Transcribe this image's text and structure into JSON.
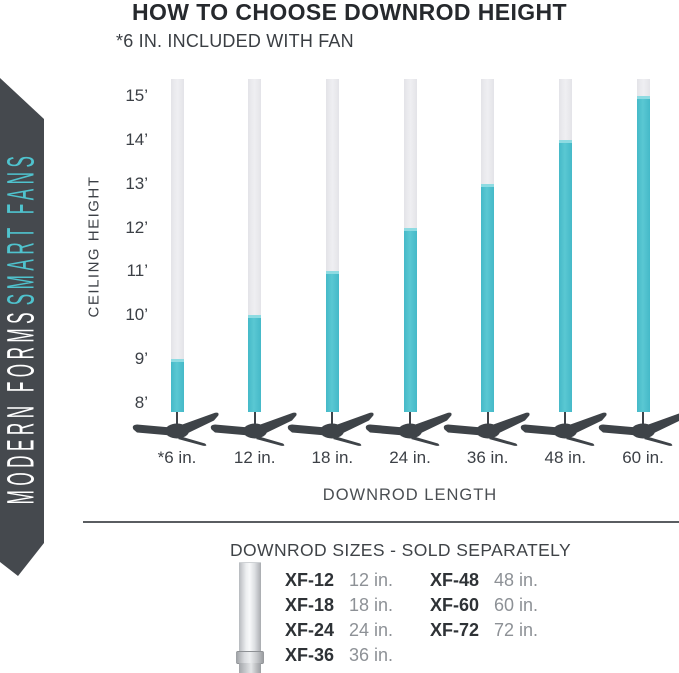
{
  "header": {
    "title": "HOW TO CHOOSE DOWNROD HEIGHT",
    "subtitle": "*6 IN. INCLUDED WITH FAN"
  },
  "ribbon": {
    "brand": "MODERN FORMS",
    "sub_brand": "SMART FANS"
  },
  "chart_data": {
    "type": "bar",
    "title": "HOW TO CHOOSE DOWNROD HEIGHT",
    "note": "*6 IN. INCLUDED WITH FAN",
    "categories": [
      "*6 in.",
      "12 in.",
      "18 in.",
      "24 in.",
      "36 in.",
      "48 in.",
      "60 in."
    ],
    "series": [
      {
        "name": "Ceiling height reached (ft)",
        "values": [
          9,
          10,
          11,
          12,
          13,
          14,
          15
        ]
      }
    ],
    "xlabel": "DOWNROD LENGTH",
    "ylabel": "CEILING HEIGHT",
    "yticks": [
      {
        "label": "15’",
        "value": 15
      },
      {
        "label": "14’",
        "value": 14
      },
      {
        "label": "13’",
        "value": 13
      },
      {
        "label": "12’",
        "value": 12
      },
      {
        "label": "11’",
        "value": 11
      },
      {
        "label": "10’",
        "value": 10
      },
      {
        "label": "9’",
        "value": 9
      },
      {
        "label": "8’",
        "value": 8
      }
    ],
    "ylim": [
      8,
      15
    ],
    "grid": false,
    "legend": false,
    "colors": {
      "filled": "#4cc0cd",
      "empty": "#e8e8ec",
      "fan": "#3e4348"
    }
  },
  "downrods": {
    "heading": "DOWNROD SIZES - SOLD SEPARATELY",
    "columns": [
      [
        {
          "code": "XF-12",
          "size": "12 in."
        },
        {
          "code": "XF-18",
          "size": "18 in."
        },
        {
          "code": "XF-24",
          "size": "24 in."
        },
        {
          "code": "XF-36",
          "size": "36 in."
        }
      ],
      [
        {
          "code": "XF-48",
          "size": "48 in."
        },
        {
          "code": "XF-60",
          "size": "60 in."
        },
        {
          "code": "XF-72",
          "size": "72 in."
        }
      ]
    ]
  }
}
